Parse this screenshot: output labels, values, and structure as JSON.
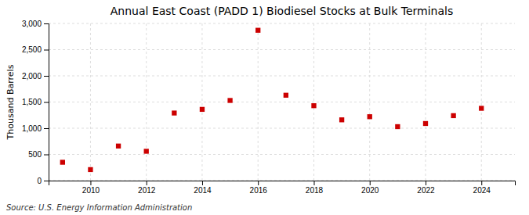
{
  "chart_data": {
    "type": "scatter",
    "title": "Annual East Coast (PADD 1) Biodiesel Stocks at Bulk Terminals",
    "y_label": "Thousand Barrels",
    "source": "Source: U.S. Energy Information Administration",
    "x": [
      2009,
      2010,
      2011,
      2012,
      2013,
      2014,
      2015,
      2016,
      2017,
      2018,
      2019,
      2020,
      2021,
      2022,
      2023,
      2024
    ],
    "values": [
      350,
      210,
      660,
      560,
      1290,
      1360,
      1530,
      2870,
      1630,
      1430,
      1160,
      1220,
      1030,
      1090,
      1240,
      1380
    ],
    "color": "#cc0000",
    "marker": "square",
    "xlim": [
      2008.5,
      2025.2
    ],
    "xticks": [
      2010,
      2012,
      2014,
      2016,
      2018,
      2020,
      2022,
      2024
    ],
    "ylim": [
      0,
      3000
    ],
    "yticks": [
      0,
      500,
      {
        "value": 1000,
        "label": "1,000"
      },
      {
        "value": 1500,
        "label": "1,500"
      },
      {
        "value": 2000,
        "label": "2,000"
      },
      {
        "value": 2500,
        "label": "2,500"
      },
      {
        "value": 3000,
        "label": "3,000"
      }
    ],
    "grid": true
  }
}
